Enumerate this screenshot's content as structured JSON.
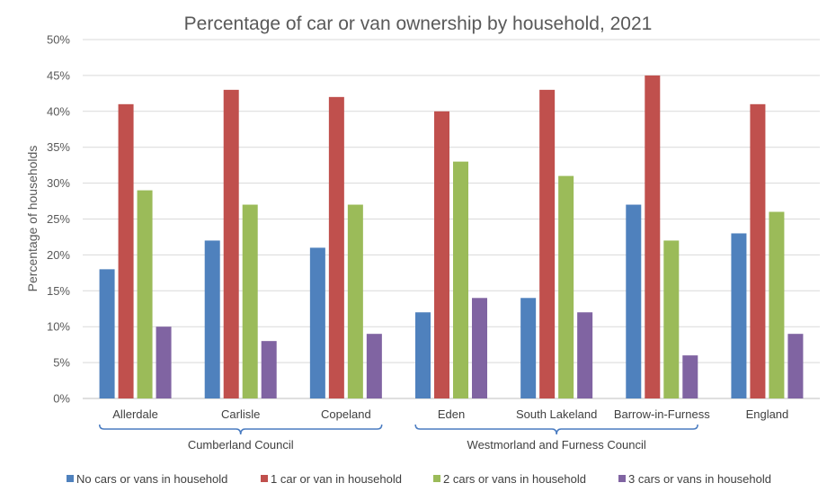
{
  "chart_data": {
    "type": "bar",
    "title": "Percentage of car or van ownership by household, 2021",
    "xlabel": "",
    "ylabel": "Percentage of households",
    "ylim": [
      0,
      50
    ],
    "yticks": [
      "0%",
      "5%",
      "10%",
      "15%",
      "20%",
      "25%",
      "30%",
      "35%",
      "40%",
      "45%",
      "50%"
    ],
    "categories": [
      "Allerdale",
      "Carlisle",
      "Copeland",
      "Eden",
      "South Lakeland",
      "Barrow-in-Furness",
      "England"
    ],
    "groups": [
      {
        "label": "Cumberland Council",
        "categories": [
          "Allerdale",
          "Carlisle",
          "Copeland"
        ]
      },
      {
        "label": "Westmorland and Furness Council",
        "categories": [
          "Eden",
          "South Lakeland",
          "Barrow-in-Furness"
        ]
      }
    ],
    "series": [
      {
        "name": "No cars or vans in household",
        "color": "#4f81bd",
        "values": [
          18,
          22,
          21,
          12,
          14,
          27,
          23
        ]
      },
      {
        "name": "1 car or van in household",
        "color": "#c0504d",
        "values": [
          41,
          43,
          42,
          40,
          43,
          45,
          41
        ]
      },
      {
        "name": "2 cars or vans in household",
        "color": "#9bbb59",
        "values": [
          29,
          27,
          27,
          33,
          31,
          22,
          26
        ]
      },
      {
        "name": "3 cars or vans in household",
        "color": "#8064a2",
        "values": [
          10,
          8,
          9,
          14,
          12,
          6,
          9
        ]
      }
    ],
    "grid": true,
    "legend": "bottom"
  }
}
